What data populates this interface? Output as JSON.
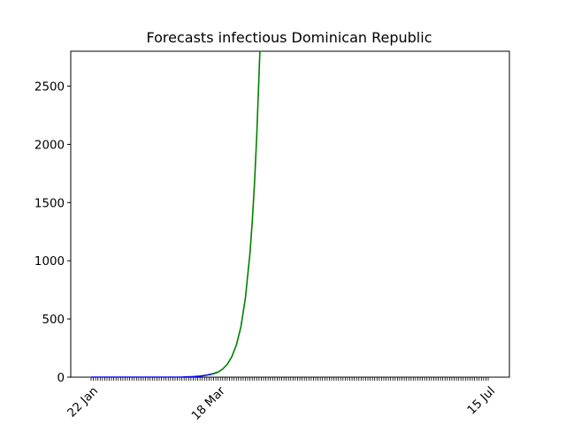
{
  "chart_data": {
    "type": "line",
    "title": "Forecasts infectious Dominican Republic",
    "xlabel": "",
    "ylabel": "",
    "x_labeled_ticks": [
      "22 Jan",
      "18 Mar",
      "15 Jul"
    ],
    "x_range_days": [
      0,
      175
    ],
    "x_tick_every_days": 1,
    "ylim": [
      0,
      2800
    ],
    "y_ticks": [
      0,
      500,
      1000,
      1500,
      2000,
      2500
    ],
    "grid": false,
    "series": [
      {
        "color": "#0000ff",
        "points": [
          [
            0,
            0
          ],
          [
            30,
            0
          ],
          [
            40,
            1
          ],
          [
            45,
            4
          ],
          [
            48,
            9
          ],
          [
            51,
            18
          ],
          [
            54,
            30
          ],
          [
            56,
            44
          ]
        ]
      },
      {
        "color": "#008000",
        "points": [
          [
            53,
            26
          ],
          [
            56,
            44
          ],
          [
            58,
            70
          ],
          [
            60,
            110
          ],
          [
            62,
            175
          ],
          [
            64,
            275
          ],
          [
            66,
            430
          ],
          [
            68,
            680
          ],
          [
            70,
            1060
          ],
          [
            71,
            1330
          ],
          [
            72,
            1660
          ],
          [
            73,
            2070
          ],
          [
            74,
            2590
          ],
          [
            74.4,
            2800
          ]
        ]
      }
    ]
  }
}
